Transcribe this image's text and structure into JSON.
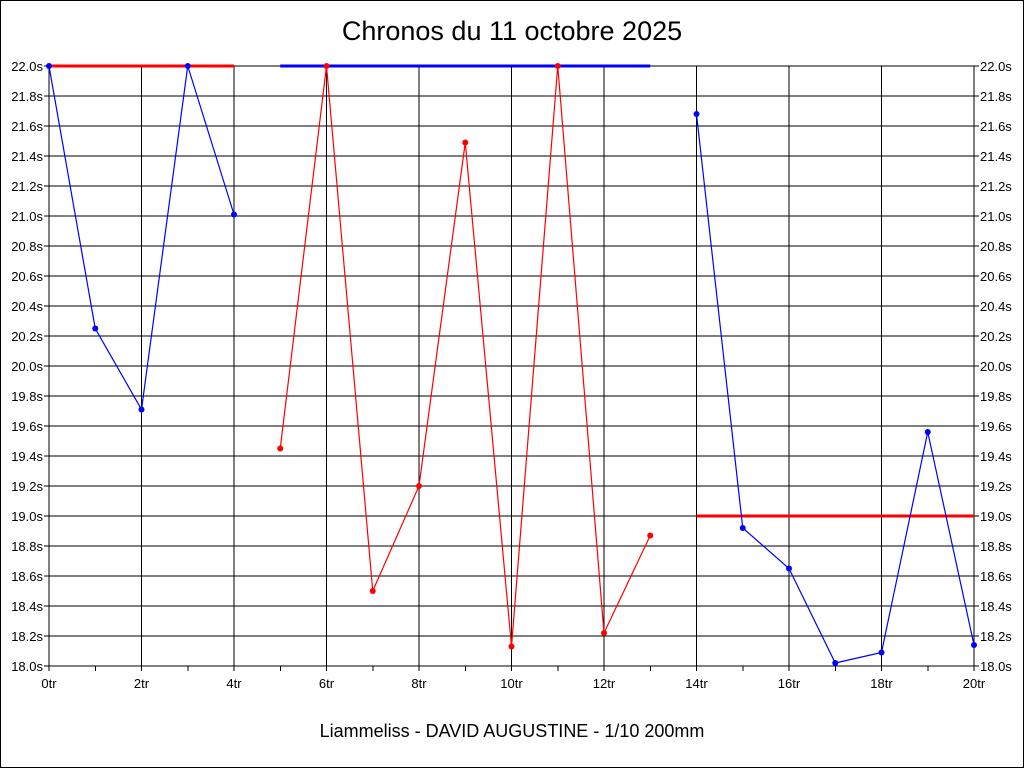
{
  "chart_data": {
    "type": "line",
    "title": "Chronos du 11 octobre 2025",
    "footer": "Liammeliss - DAVID AUGUSTINE - 1/10 200mm",
    "xlabel": "",
    "ylabel": "",
    "xlim": [
      0,
      20
    ],
    "ylim": [
      18.0,
      22.0
    ],
    "grid": true,
    "x_ticks": [
      "0tr",
      "2tr",
      "4tr",
      "6tr",
      "8tr",
      "10tr",
      "12tr",
      "14tr",
      "16tr",
      "18tr",
      "20tr"
    ],
    "y_ticks": [
      "18.0s",
      "18.2s",
      "18.4s",
      "18.6s",
      "18.8s",
      "19.0s",
      "19.2s",
      "19.4s",
      "19.6s",
      "19.8s",
      "20.0s",
      "20.2s",
      "20.4s",
      "20.6s",
      "20.8s",
      "21.0s",
      "21.2s",
      "21.4s",
      "21.6s",
      "21.8s",
      "22.0s"
    ],
    "series": [
      {
        "color": "#0000ff",
        "x": [
          0,
          1,
          2,
          3,
          4
        ],
        "y": [
          22.0,
          20.25,
          19.71,
          22.0,
          21.01
        ]
      },
      {
        "color": "#ff0000",
        "x": [
          5,
          6,
          7,
          8,
          9,
          10,
          11,
          12,
          13
        ],
        "y": [
          19.45,
          22.0,
          18.5,
          19.2,
          21.49,
          18.13,
          22.0,
          18.22,
          18.87
        ]
      },
      {
        "color": "#0000ff",
        "x": [
          14,
          15,
          16,
          17,
          18,
          19,
          20
        ],
        "y": [
          21.68,
          18.92,
          18.65,
          18.02,
          18.09,
          19.56,
          18.14
        ]
      }
    ],
    "reference_lines": [
      {
        "color": "#ff0000",
        "y": 22.0,
        "x_start": 0,
        "x_end": 4
      },
      {
        "color": "#0000ff",
        "y": 22.0,
        "x_start": 5,
        "x_end": 13
      },
      {
        "color": "#ff0000",
        "y": 19.0,
        "x_start": 14,
        "x_end": 20
      }
    ]
  }
}
